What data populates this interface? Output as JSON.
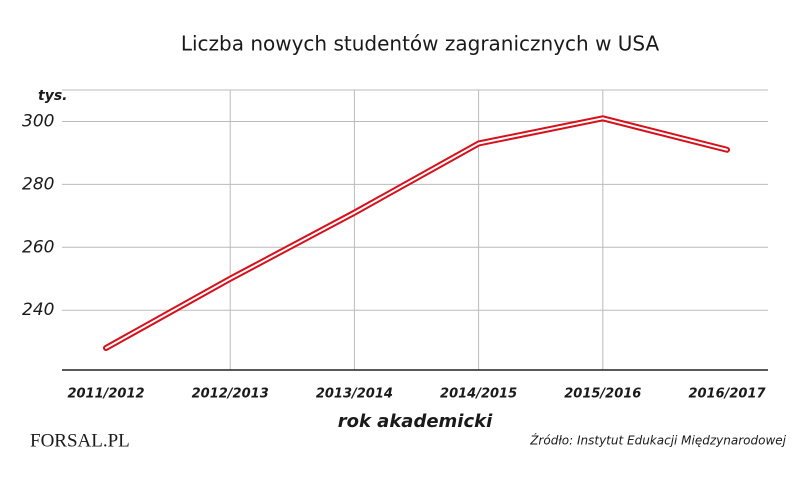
{
  "chart_data": {
    "type": "line",
    "title": "Liczba nowych studentów zagranicznych w USA",
    "y_unit": "tys.",
    "x_label": "rok akademicki",
    "source": "Źródło: Instytut Edukacji Międzynarodowej",
    "logo": "FORSAL.PL",
    "categories": [
      "2011/2012",
      "2012/2013",
      "2013/2014",
      "2014/2015",
      "2015/2016",
      "2016/2017"
    ],
    "values": [
      228,
      250,
      271,
      293,
      301,
      291
    ],
    "color": "#d7111b",
    "ylim": [
      221,
      310
    ],
    "yticks": [
      240,
      260,
      280,
      300
    ],
    "grid": true
  }
}
